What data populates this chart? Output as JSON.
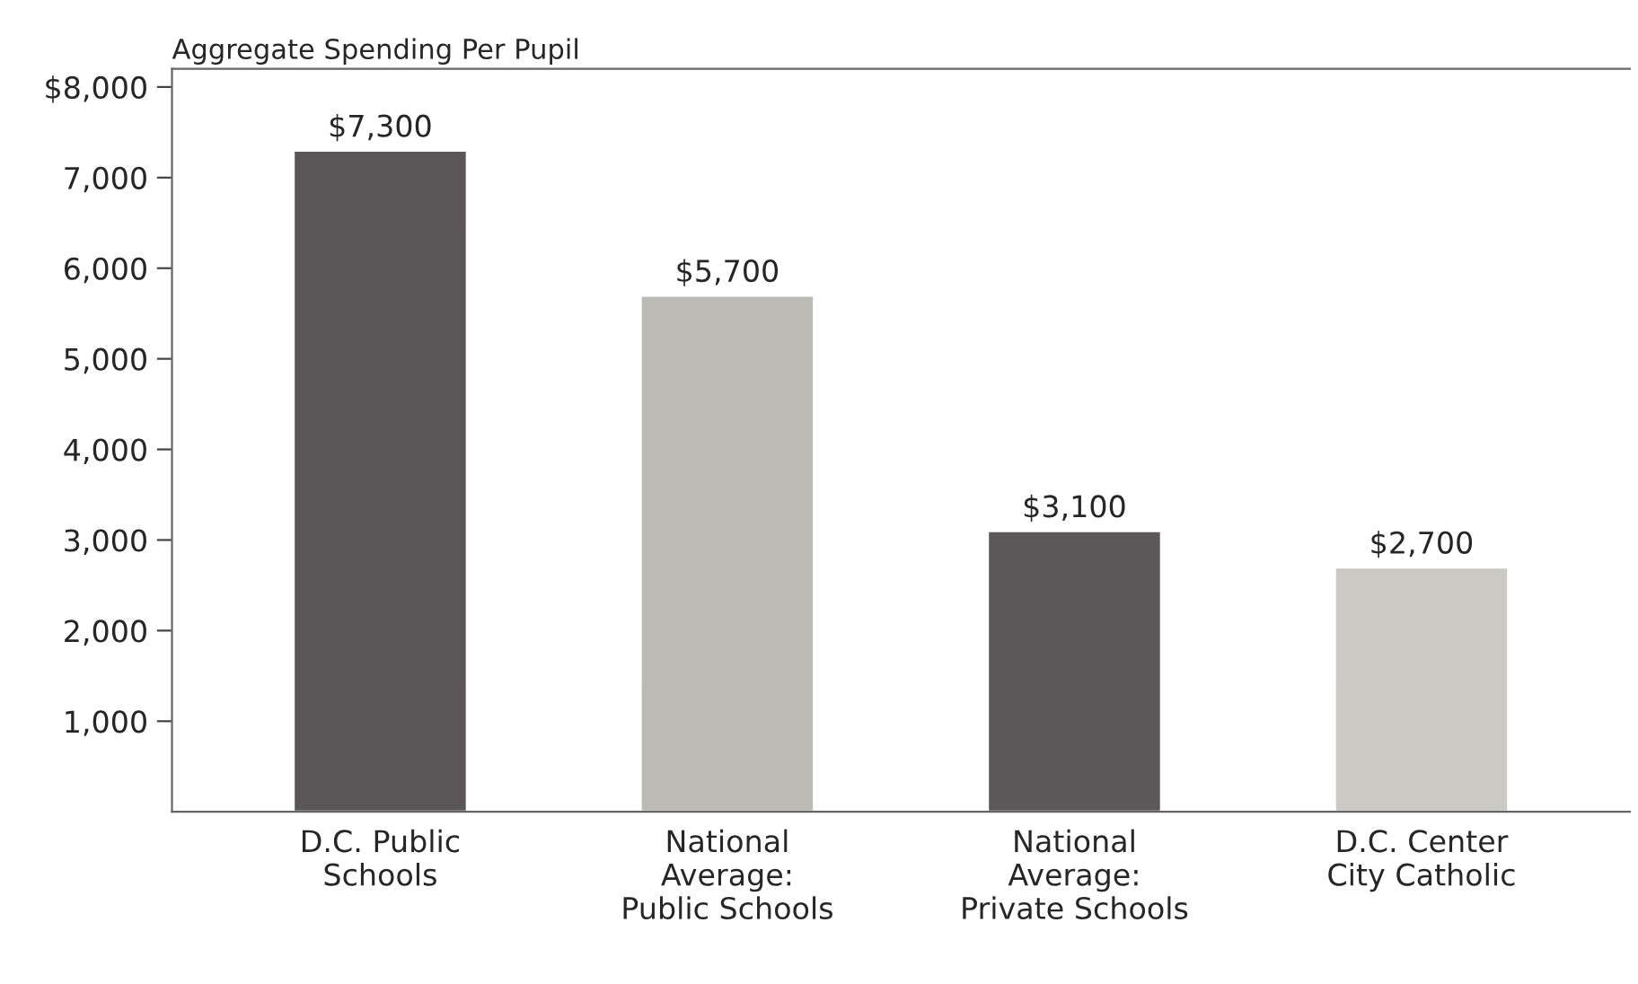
{
  "chart_data": {
    "type": "bar",
    "title": "Aggregate Spending Per Pupil",
    "categories": [
      "D.C. Public\nSchools",
      "National\nAverage:\nPublic Schools",
      "National\nAverage:\nPrivate Schools",
      "D.C. Center\nCity Catholic"
    ],
    "values": [
      7300,
      5700,
      3100,
      2700
    ],
    "colors": [
      "#5a5658",
      "#bcbab4",
      "#5c585a",
      "#cbc9c3"
    ],
    "value_labels": [
      "$7,300",
      "$5,700",
      "$3,100",
      "$2,700"
    ],
    "ylim": [
      0,
      8200
    ],
    "yticks": [
      {
        "value": 1000,
        "label": "1,000"
      },
      {
        "value": 2000,
        "label": "2,000"
      },
      {
        "value": 3000,
        "label": "3,000"
      },
      {
        "value": 4000,
        "label": "4,000"
      },
      {
        "value": 5000,
        "label": "5,000"
      },
      {
        "value": 6000,
        "label": "6,000"
      },
      {
        "value": 7000,
        "label": "7,000"
      },
      {
        "value": 8000,
        "label": "$8,000"
      }
    ],
    "grid": false,
    "legend": false
  }
}
